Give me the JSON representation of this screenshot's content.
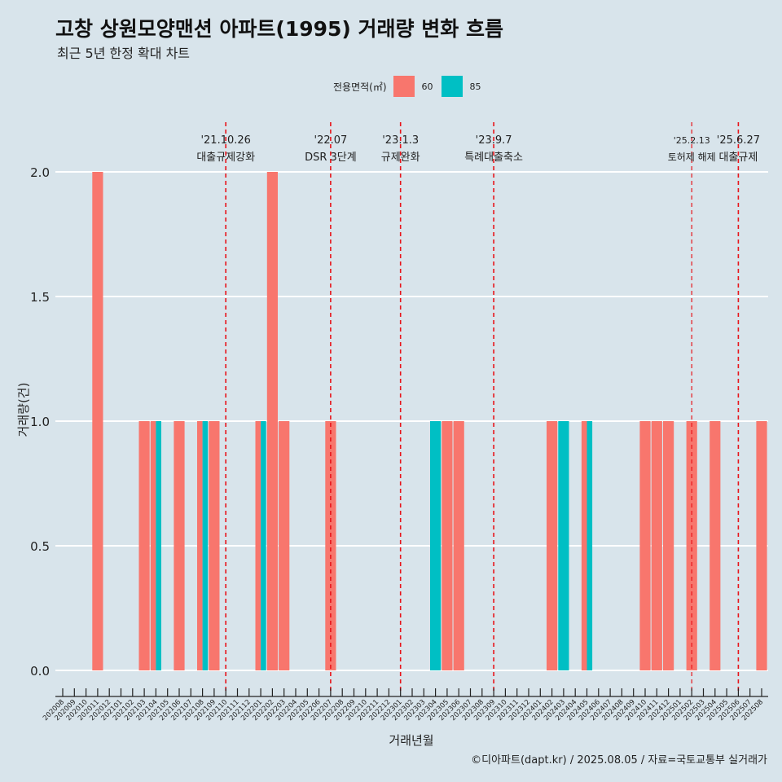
{
  "title": "고창 상원모양맨션 아파트(1995) 거래량 변화 흐름",
  "subtitle": "최근 5년 한정 확대 차트",
  "caption": "©디아파트(dapt.kr) / 2025.08.05 / 자료=국토교통부 실거래가",
  "legend": {
    "title": "전용면적(㎡)",
    "items": [
      {
        "label": "60",
        "color": "#F8766D"
      },
      {
        "label": "85",
        "color": "#00BFC4"
      }
    ]
  },
  "chart_data": {
    "type": "bar",
    "xlabel": "거래년월",
    "ylabel": "거래량(건)",
    "ylim": [
      0,
      2
    ],
    "yticks": [
      "0.0",
      "0.5",
      "1.0",
      "1.5",
      "2.0"
    ],
    "categories": [
      "202008",
      "202009",
      "202010",
      "202011",
      "202012",
      "202101",
      "202102",
      "202103",
      "202104",
      "202105",
      "202106",
      "202107",
      "202108",
      "202109",
      "202110",
      "202111",
      "202112",
      "202201",
      "202202",
      "202203",
      "202204",
      "202205",
      "202206",
      "202207",
      "202208",
      "202209",
      "202210",
      "202211",
      "202212",
      "202301",
      "202302",
      "202303",
      "202304",
      "202305",
      "202306",
      "202307",
      "202308",
      "202309",
      "202310",
      "202311",
      "202312",
      "202401",
      "202402",
      "202403",
      "202404",
      "202405",
      "202406",
      "202407",
      "202408",
      "202409",
      "202410",
      "202411",
      "202412",
      "202501",
      "202502",
      "202503",
      "202504",
      "202505",
      "202506",
      "202507",
      "202508"
    ],
    "series": [
      {
        "name": "60",
        "color": "#F8766D",
        "values": [
          0,
          0,
          0,
          2,
          0,
          0,
          0,
          1,
          1,
          0,
          1,
          0,
          1,
          1,
          0,
          0,
          0,
          1,
          2,
          1,
          0,
          0,
          0,
          1,
          0,
          0,
          0,
          0,
          0,
          0,
          0,
          0,
          0,
          1,
          1,
          0,
          0,
          0,
          0,
          0,
          0,
          0,
          1,
          0,
          0,
          1,
          0,
          0,
          0,
          0,
          1,
          1,
          1,
          0,
          1,
          0,
          1,
          0,
          0,
          0,
          1
        ]
      },
      {
        "name": "85",
        "color": "#00BFC4",
        "values": [
          0,
          0,
          0,
          0,
          0,
          0,
          0,
          0,
          1,
          0,
          0,
          0,
          1,
          0,
          0,
          0,
          0,
          1,
          0,
          0,
          0,
          0,
          0,
          0,
          0,
          0,
          0,
          0,
          0,
          0,
          0,
          0,
          1,
          0,
          0,
          0,
          0,
          0,
          0,
          0,
          0,
          0,
          0,
          1,
          0,
          1,
          0,
          0,
          0,
          0,
          0,
          0,
          0,
          0,
          0,
          0,
          0,
          0,
          0,
          0,
          0
        ]
      }
    ],
    "annotations": [
      {
        "x": "202110",
        "date": "'21.10.26",
        "label": "대출규제강화"
      },
      {
        "x": "202207",
        "date": "'22.07",
        "label": "DSR 3단계"
      },
      {
        "x": "202301",
        "date": "'23.1.3",
        "label": "규제완화"
      },
      {
        "x": "202309",
        "date": "'23.9.7",
        "label": "특례대출축소"
      },
      {
        "x": "202502",
        "date": "'25.2.13",
        "label": "토허제 해제"
      },
      {
        "x": "202506",
        "date": "'25.6.27",
        "label": "대출규제"
      }
    ],
    "grid": true,
    "legend_position": "top"
  }
}
